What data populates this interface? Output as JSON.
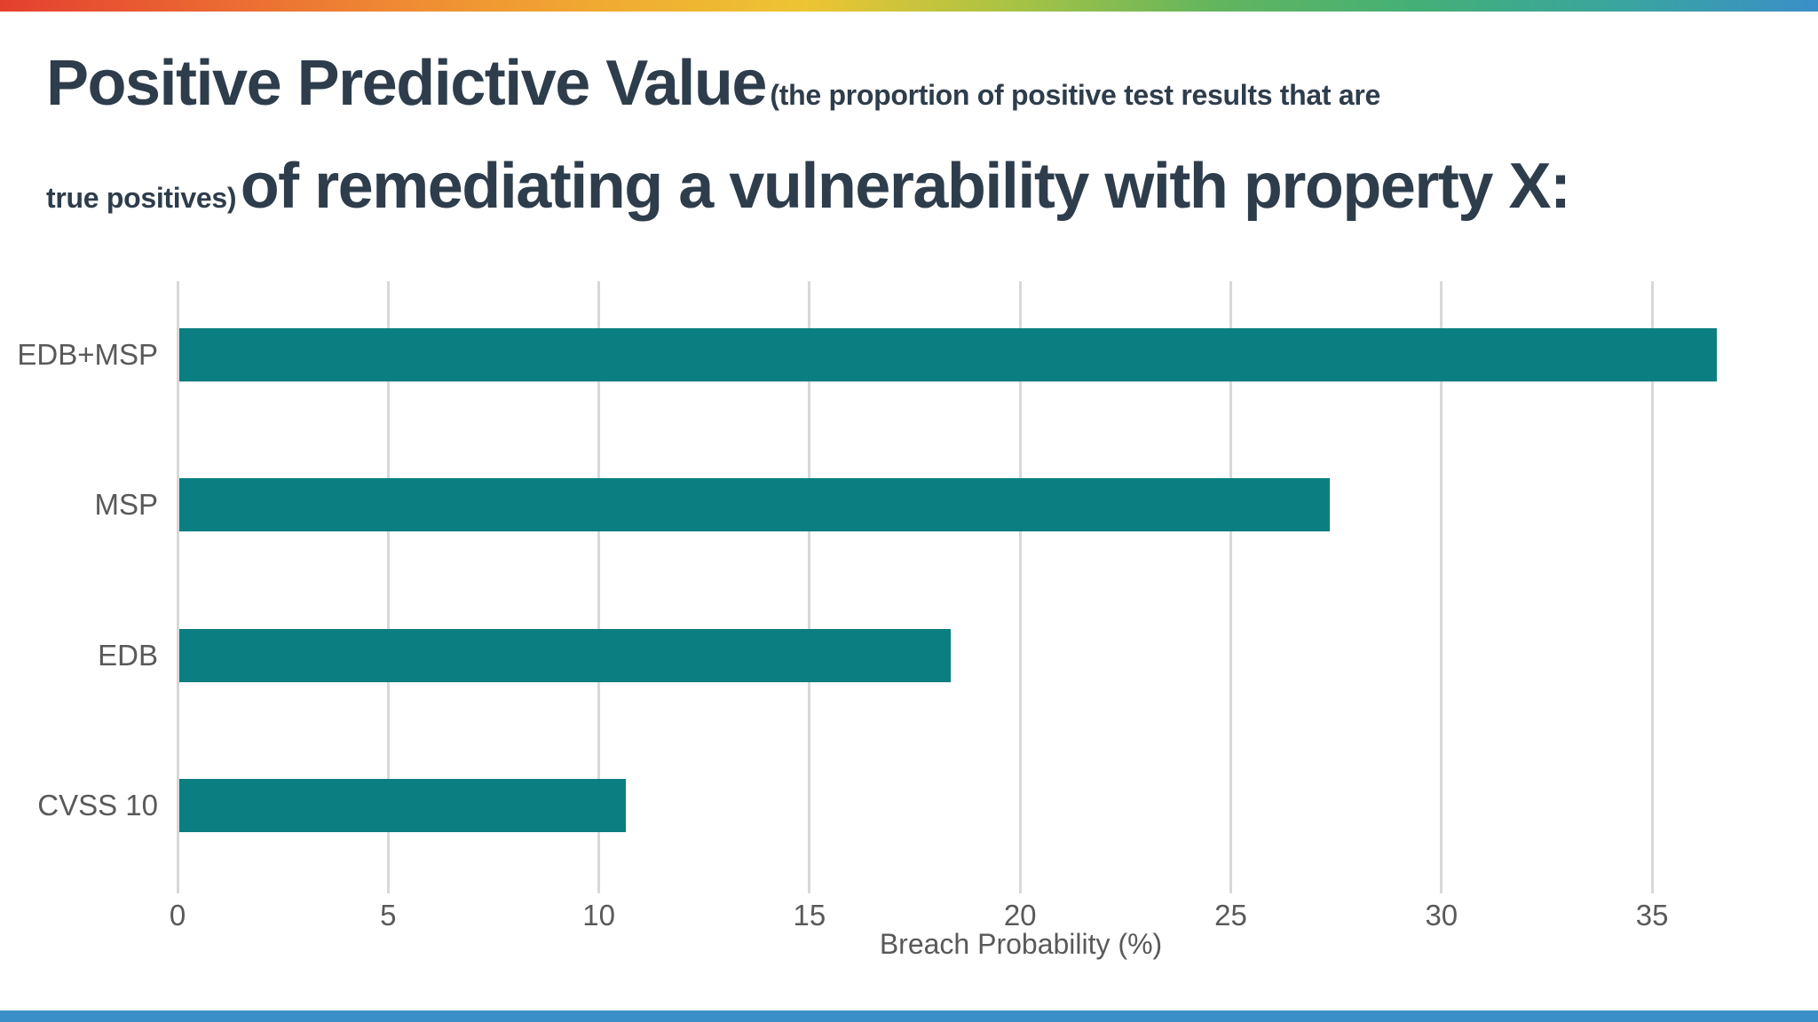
{
  "header": {
    "title_line1_big": "Positive Predictive Value",
    "title_line1_small": "(the proportion of positive test results that are",
    "title_line2_small": "true positives)",
    "title_line2_big": "of remediating a vulnerability with property X:"
  },
  "chart_data": {
    "type": "bar",
    "orientation": "horizontal",
    "title": "Positive Predictive Value (the proportion of positive test results that are true positives) of remediating a vulnerability with property X:",
    "categories": [
      "EDB+MSP",
      "MSP",
      "EDB",
      "CVSS 10"
    ],
    "values": [
      36.5,
      27.3,
      18.3,
      10.6
    ],
    "xlabel": "Breach Probability (%)",
    "ylabel": "",
    "x_ticks": [
      0,
      5,
      10,
      15,
      20,
      25,
      30,
      35
    ],
    "xlim": [
      0,
      38.9
    ],
    "grid": true,
    "legend": false,
    "bar_color": "#0a7e80"
  },
  "colors": {
    "background": "#ffffff",
    "title_text": "#2e3d4c",
    "axis_text": "#595959",
    "gridline": "#d8d8d8",
    "bar": "#0a7e80",
    "bottom_bar": "#3a8fc8",
    "top_gradient": [
      "#e4402f",
      "#ea6632",
      "#ef8b33",
      "#f0ab32",
      "#edc433",
      "#a9c344",
      "#63b55e",
      "#44b077",
      "#3aa59e",
      "#3a8fc8"
    ]
  }
}
